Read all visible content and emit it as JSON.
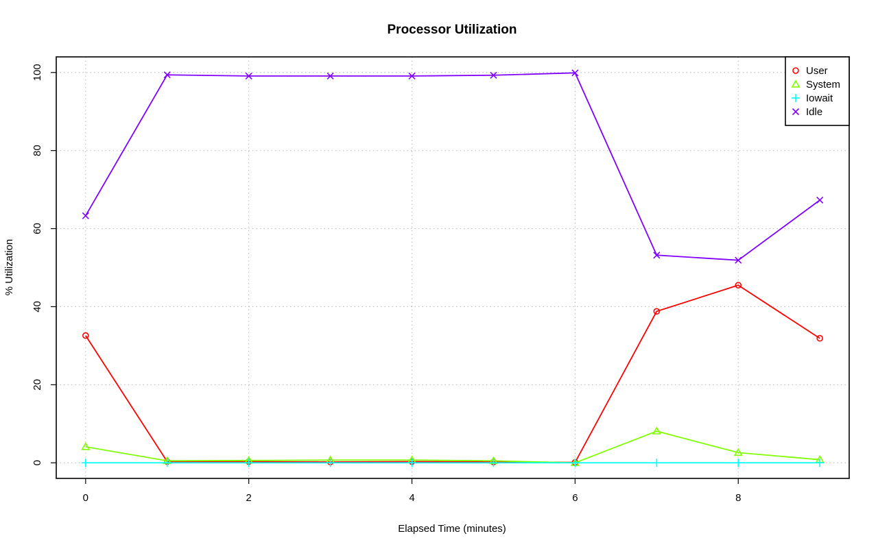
{
  "chart_data": {
    "type": "line",
    "title": "Processor Utilization",
    "xlabel": "Elapsed Time (minutes)",
    "ylabel": "% Utilization",
    "x": [
      0,
      1,
      2,
      3,
      4,
      5,
      6,
      7,
      8,
      9
    ],
    "xlim": [
      -0.36,
      9.36
    ],
    "ylim": [
      -4,
      104
    ],
    "x_ticks": [
      0,
      2,
      4,
      6,
      8
    ],
    "y_ticks": [
      0,
      20,
      40,
      60,
      80,
      100
    ],
    "grid": true,
    "legend_position": "top-right",
    "series": [
      {
        "name": "User",
        "color": "#ff0000",
        "marker": "circle",
        "values": [
          32.6,
          0.3,
          0.3,
          0.2,
          0.3,
          0.2,
          0.1,
          38.8,
          45.5,
          31.9
        ]
      },
      {
        "name": "System",
        "color": "#80ff00",
        "marker": "triangle",
        "values": [
          4.1,
          0.5,
          0.6,
          0.7,
          0.7,
          0.5,
          0.0,
          8.1,
          2.6,
          0.8
        ]
      },
      {
        "name": "Iowait",
        "color": "#00ffff",
        "marker": "plus",
        "values": [
          0,
          0,
          0,
          0,
          0,
          0,
          0,
          0,
          0,
          0
        ]
      },
      {
        "name": "Idle",
        "color": "#8000ff",
        "marker": "cross",
        "values": [
          63.3,
          99.4,
          99.1,
          99.1,
          99.1,
          99.3,
          99.9,
          53.2,
          51.9,
          67.3
        ]
      }
    ]
  }
}
